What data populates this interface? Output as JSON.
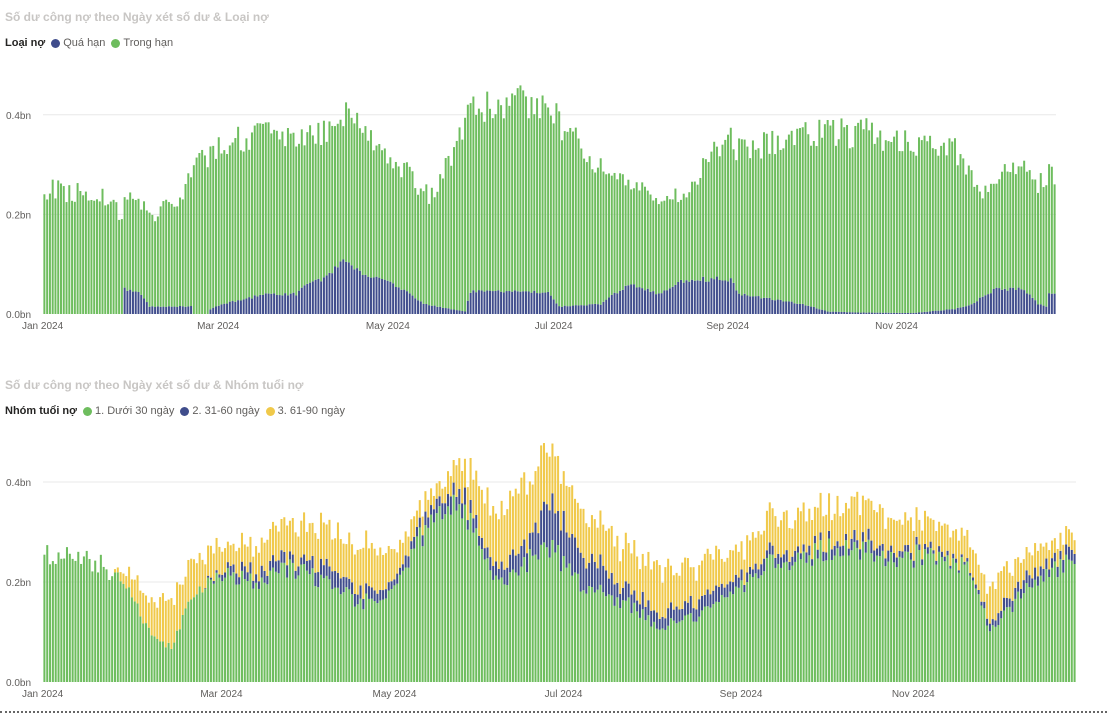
{
  "colors": {
    "green": "#6ebd5e",
    "navy": "#404d8c",
    "yellow": "#f0c94a",
    "grid": "#e8e8e8"
  },
  "charts": [
    {
      "id": "chart1",
      "title": "Số dư công nợ theo Ngày xét số dư & Loại nợ",
      "legend_title": "Loại nợ",
      "legend": [
        {
          "name": "Quá hạn",
          "color": "#404d8c"
        },
        {
          "name": "Trong hạn",
          "color": "#6ebd5e"
        }
      ],
      "y_ticks": [
        "0.0bn",
        "0.2bn",
        "0.4bn"
      ],
      "x_ticks": [
        "Jan 2024",
        "Mar 2024",
        "May 2024",
        "Jul 2024",
        "Sep 2024",
        "Nov 2024"
      ]
    },
    {
      "id": "chart2",
      "title": "Số dư công nợ theo Ngày xét số dư & Nhóm tuổi nợ",
      "legend_title": "Nhóm tuổi nợ",
      "legend": [
        {
          "name": "1. Dưới 30 ngày",
          "color": "#6ebd5e"
        },
        {
          "name": "2. 31-60 ngày",
          "color": "#404d8c"
        },
        {
          "name": "3. 61-90 ngày",
          "color": "#f0c94a"
        }
      ],
      "y_ticks": [
        "0.0bn",
        "0.2bn",
        "0.4bn"
      ],
      "x_ticks": [
        "Jan 2024",
        "Mar 2024",
        "May 2024",
        "Jul 2024",
        "Sep 2024",
        "Nov 2024"
      ]
    }
  ],
  "chart_data": [
    {
      "type": "bar",
      "stacked": true,
      "title": "Số dư công nợ theo Ngày xét số dư & Loại nợ",
      "x_type": "daily",
      "x_range": [
        "2024-01-01",
        "2024-12-31"
      ],
      "ylabel": "",
      "ylim_bn": [
        0,
        0.5
      ],
      "unit": "bn",
      "series": [
        {
          "name": "Quá hạn",
          "anchors": [
            [
              "2024-01-01",
              0
            ],
            [
              "2024-01-29",
              0
            ],
            [
              "2024-01-30",
              0.05
            ],
            [
              "2024-02-05",
              0.04
            ],
            [
              "2024-02-08",
              0.015
            ],
            [
              "2024-02-23",
              0.015
            ],
            [
              "2024-02-24",
              0
            ],
            [
              "2024-02-29",
              0
            ],
            [
              "2024-03-01",
              0.01
            ],
            [
              "2024-03-05",
              0.02
            ],
            [
              "2024-03-14",
              0.03
            ],
            [
              "2024-03-20",
              0.04
            ],
            [
              "2024-04-01",
              0.04
            ],
            [
              "2024-04-05",
              0.06
            ],
            [
              "2024-04-10",
              0.07
            ],
            [
              "2024-04-15",
              0.09
            ],
            [
              "2024-04-18",
              0.11
            ],
            [
              "2024-04-22",
              0.09
            ],
            [
              "2024-05-01",
              0.07
            ],
            [
              "2024-05-10",
              0.05
            ],
            [
              "2024-05-17",
              0.02
            ],
            [
              "2024-05-27",
              0.01
            ],
            [
              "2024-06-01",
              0.005
            ],
            [
              "2024-06-03",
              0.045
            ],
            [
              "2024-06-15",
              0.045
            ],
            [
              "2024-07-01",
              0.045
            ],
            [
              "2024-07-05",
              0.015
            ],
            [
              "2024-07-20",
              0.02
            ],
            [
              "2024-07-30",
              0.06
            ],
            [
              "2024-08-10",
              0.04
            ],
            [
              "2024-08-20",
              0.07
            ],
            [
              "2024-09-05",
              0.07
            ],
            [
              "2024-09-08",
              0.04
            ],
            [
              "2024-09-20",
              0.03
            ],
            [
              "2024-10-01",
              0.02
            ],
            [
              "2024-10-10",
              0.005
            ],
            [
              "2024-10-21",
              0.003
            ],
            [
              "2024-11-10",
              0.002
            ],
            [
              "2024-11-25",
              0.01
            ],
            [
              "2024-12-01",
              0.02
            ],
            [
              "2024-12-05",
              0.035
            ],
            [
              "2024-12-10",
              0.05
            ],
            [
              "2024-12-20",
              0.05
            ],
            [
              "2024-12-25",
              0.02
            ],
            [
              "2024-12-28",
              0.015
            ],
            [
              "2024-12-29",
              0.04
            ],
            [
              "2024-12-31",
              0.04
            ]
          ]
        },
        {
          "name": "Trong hạn",
          "anchors": [
            [
              "2024-01-01",
              0.25
            ],
            [
              "2024-01-20",
              0.24
            ],
            [
              "2024-01-31",
              0.19
            ],
            [
              "2024-02-10",
              0.18
            ],
            [
              "2024-02-20",
              0.23
            ],
            [
              "2024-02-25",
              0.3
            ],
            [
              "2024-03-05",
              0.33
            ],
            [
              "2024-03-20",
              0.32
            ],
            [
              "2024-04-05",
              0.3
            ],
            [
              "2024-04-18",
              0.29
            ],
            [
              "2024-04-22",
              0.32
            ],
            [
              "2024-05-01",
              0.26
            ],
            [
              "2024-05-20",
              0.22
            ],
            [
              "2024-06-01",
              0.37
            ],
            [
              "2024-06-20",
              0.38
            ],
            [
              "2024-07-03",
              0.38
            ],
            [
              "2024-07-30",
              0.21
            ],
            [
              "2024-08-20",
              0.17
            ],
            [
              "2024-09-01",
              0.27
            ],
            [
              "2024-09-25",
              0.33
            ],
            [
              "2024-10-10",
              0.36
            ],
            [
              "2024-10-25",
              0.36
            ],
            [
              "2024-11-10",
              0.34
            ],
            [
              "2024-11-25",
              0.32
            ],
            [
              "2024-12-05",
              0.2
            ],
            [
              "2024-12-15",
              0.25
            ],
            [
              "2024-12-31",
              0.24
            ]
          ]
        }
      ]
    },
    {
      "type": "bar",
      "stacked": true,
      "title": "Số dư công nợ theo Ngày xét số dư & Nhóm tuổi nợ",
      "x_type": "daily",
      "x_range": [
        "2024-01-01",
        "2024-12-31"
      ],
      "ylabel": "",
      "ylim_bn": [
        0,
        0.5
      ],
      "unit": "bn",
      "series": [
        {
          "name": "1. Dưới 30 ngày",
          "anchors": [
            [
              "2024-01-01",
              0.25
            ],
            [
              "2024-01-20",
              0.24
            ],
            [
              "2024-01-31",
              0.18
            ],
            [
              "2024-02-10",
              0.08
            ],
            [
              "2024-02-15",
              0.07
            ],
            [
              "2024-02-22",
              0.17
            ],
            [
              "2024-03-05",
              0.22
            ],
            [
              "2024-03-15",
              0.2
            ],
            [
              "2024-04-01",
              0.23
            ],
            [
              "2024-04-12",
              0.19
            ],
            [
              "2024-04-22",
              0.16
            ],
            [
              "2024-05-05",
              0.18
            ],
            [
              "2024-05-10",
              0.27
            ],
            [
              "2024-05-25",
              0.36
            ],
            [
              "2024-06-01",
              0.3
            ],
            [
              "2024-06-10",
              0.2
            ],
            [
              "2024-06-20",
              0.24
            ],
            [
              "2024-06-28",
              0.27
            ],
            [
              "2024-07-10",
              0.19
            ],
            [
              "2024-07-25",
              0.16
            ],
            [
              "2024-08-05",
              0.11
            ],
            [
              "2024-08-20",
              0.13
            ],
            [
              "2024-09-01",
              0.18
            ],
            [
              "2024-09-15",
              0.24
            ],
            [
              "2024-10-01",
              0.26
            ],
            [
              "2024-10-15",
              0.27
            ],
            [
              "2024-10-25",
              0.25
            ],
            [
              "2024-11-10",
              0.25
            ],
            [
              "2024-11-25",
              0.22
            ],
            [
              "2024-12-01",
              0.1
            ],
            [
              "2024-12-10",
              0.16
            ],
            [
              "2024-12-20",
              0.22
            ],
            [
              "2024-12-31",
              0.24
            ]
          ]
        },
        {
          "name": "2. 31-60 ngày",
          "anchors": [
            [
              "2024-01-01",
              0
            ],
            [
              "2024-02-25",
              0
            ],
            [
              "2024-03-01",
              0.005
            ],
            [
              "2024-03-10",
              0.02
            ],
            [
              "2024-04-01",
              0.02
            ],
            [
              "2024-04-15",
              0.03
            ],
            [
              "2024-04-25",
              0.02
            ],
            [
              "2024-05-01",
              0.015
            ],
            [
              "2024-05-25",
              0.03
            ],
            [
              "2024-06-05",
              0.02
            ],
            [
              "2024-06-20",
              0.04
            ],
            [
              "2024-06-28",
              0.08
            ],
            [
              "2024-07-10",
              0.06
            ],
            [
              "2024-07-25",
              0.03
            ],
            [
              "2024-08-05",
              0.03
            ],
            [
              "2024-08-20",
              0.03
            ],
            [
              "2024-09-01",
              0.02
            ],
            [
              "2024-09-15",
              0.02
            ],
            [
              "2024-10-01",
              0.015
            ],
            [
              "2024-10-20",
              0.02
            ],
            [
              "2024-11-10",
              0.01
            ],
            [
              "2024-11-25",
              0.005
            ],
            [
              "2024-12-05",
              0.02
            ],
            [
              "2024-12-20",
              0.02
            ],
            [
              "2024-12-31",
              0.02
            ]
          ]
        },
        {
          "name": "3. 61-90 ngày",
          "anchors": [
            [
              "2024-01-01",
              0
            ],
            [
              "2024-01-25",
              0
            ],
            [
              "2024-02-01",
              0.04
            ],
            [
              "2024-02-15",
              0.09
            ],
            [
              "2024-02-25",
              0.06
            ],
            [
              "2024-03-05",
              0.05
            ],
            [
              "2024-03-20",
              0.06
            ],
            [
              "2024-04-10",
              0.08
            ],
            [
              "2024-04-25",
              0.09
            ],
            [
              "2024-05-05",
              0.05
            ],
            [
              "2024-05-20",
              0.03
            ],
            [
              "2024-06-05",
              0.1
            ],
            [
              "2024-06-20",
              0.12
            ],
            [
              "2024-07-01",
              0.1
            ],
            [
              "2024-07-15",
              0.08
            ],
            [
              "2024-08-05",
              0.09
            ],
            [
              "2024-08-20",
              0.07
            ],
            [
              "2024-09-01",
              0.06
            ],
            [
              "2024-09-15",
              0.07
            ],
            [
              "2024-10-01",
              0.07
            ],
            [
              "2024-10-15",
              0.08
            ],
            [
              "2024-11-05",
              0.06
            ],
            [
              "2024-11-25",
              0.05
            ],
            [
              "2024-12-05",
              0.07
            ],
            [
              "2024-12-20",
              0.04
            ],
            [
              "2024-12-31",
              0.03
            ]
          ]
        }
      ]
    }
  ]
}
